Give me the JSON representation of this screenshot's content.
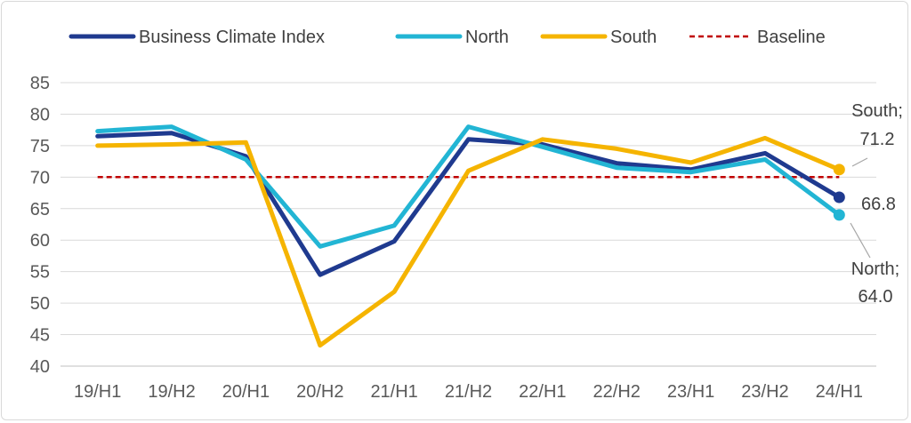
{
  "chart_data": {
    "type": "line",
    "title": "",
    "xlabel": "",
    "ylabel": "",
    "ylim": [
      40,
      85
    ],
    "yticks": [
      40,
      45,
      50,
      55,
      60,
      65,
      70,
      75,
      80,
      85
    ],
    "grid": true,
    "legend_position": "top",
    "categories": [
      "19/H1",
      "19/H2",
      "20/H1",
      "20/H2",
      "21/H1",
      "21/H2",
      "22/H1",
      "22/H2",
      "23/H1",
      "23/H2",
      "24/H1"
    ],
    "series": [
      {
        "name": "Business Climate Index",
        "color": "#1f3a8f",
        "style": "solid",
        "values": [
          76.5,
          77.0,
          73.3,
          54.5,
          59.8,
          76.0,
          75.2,
          72.2,
          71.2,
          73.8,
          66.8
        ]
      },
      {
        "name": "North",
        "color": "#22b5d4",
        "style": "solid",
        "values": [
          77.3,
          78.0,
          72.8,
          59.0,
          62.3,
          78.0,
          74.8,
          71.5,
          70.8,
          72.8,
          64.0
        ]
      },
      {
        "name": "South",
        "color": "#f5b400",
        "style": "solid",
        "values": [
          75.0,
          75.2,
          75.5,
          43.3,
          51.8,
          71.0,
          76.0,
          74.5,
          72.3,
          76.2,
          71.2
        ]
      },
      {
        "name": "Baseline",
        "color": "#c00000",
        "style": "dashed",
        "values": [
          70,
          70,
          70,
          70,
          70,
          70,
          70,
          70,
          70,
          70,
          70
        ]
      }
    ],
    "annotations": [
      {
        "series": "South",
        "lines": [
          "South;",
          "71.2"
        ]
      },
      {
        "series": "Business Climate Index",
        "lines": [
          "66.8"
        ]
      },
      {
        "series": "North",
        "lines": [
          "North;",
          "64.0"
        ]
      }
    ]
  }
}
